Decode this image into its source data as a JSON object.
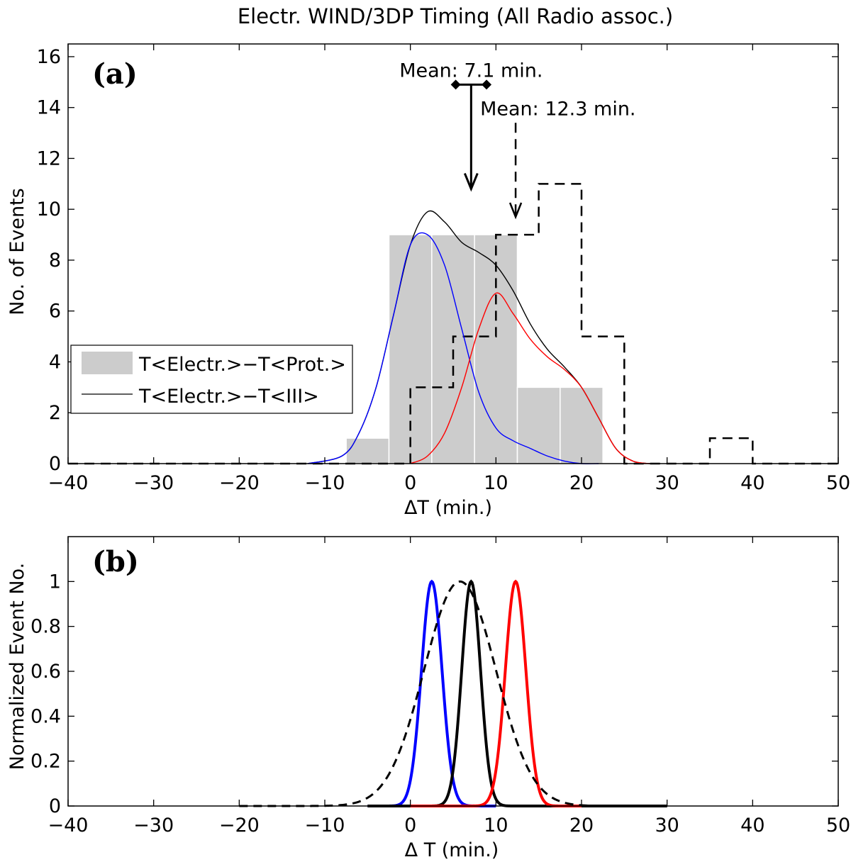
{
  "chart_data": [
    {
      "type": "bar",
      "panel_label": "(a)",
      "title": "Electr. WIND/3DP Timing (All Radio assoc.)",
      "xlabel": "ΔT (min.)",
      "ylabel": "No. of Events",
      "xlim": [
        -40,
        50
      ],
      "ylim": [
        0,
        16.5
      ],
      "xticks": [
        -40,
        -30,
        -20,
        -10,
        0,
        10,
        20,
        30,
        40,
        50
      ],
      "yticks": [
        0,
        2,
        4,
        6,
        8,
        10,
        12,
        14,
        16
      ],
      "grid": false,
      "legend": {
        "placement": "center-left",
        "entries": [
          "T<Electr.>−T<Prot.>",
          "T<Electr.>−T<III>"
        ]
      },
      "histogram_gray": {
        "name": "T<Electr.>−T<Prot.>",
        "color": "#cccccc",
        "bins": [
          {
            "x0": -7.5,
            "x1": -2.5,
            "value": 1
          },
          {
            "x0": -2.5,
            "x1": 2.5,
            "value": 9
          },
          {
            "x0": 2.5,
            "x1": 7.5,
            "value": 9
          },
          {
            "x0": 7.5,
            "x1": 12.5,
            "value": 9
          },
          {
            "x0": 12.5,
            "x1": 17.5,
            "value": 3
          },
          {
            "x0": 17.5,
            "x1": 22.5,
            "value": 3
          }
        ]
      },
      "histogram_dashed": {
        "edges": [
          -40,
          -35,
          -30,
          -25,
          -20,
          -15,
          -10,
          -5,
          0,
          5,
          10,
          15,
          20,
          25,
          30,
          35,
          40,
          45,
          50
        ],
        "values": [
          0,
          0,
          0,
          0,
          0,
          0,
          0,
          0,
          3,
          5,
          9,
          11,
          5,
          0,
          0,
          1,
          0,
          0
        ]
      },
      "curves": [
        {
          "name": "T<Electr.>−T<III>",
          "color": "#000000",
          "x": [
            -12,
            -8,
            -6,
            -4,
            -2,
            0,
            2,
            4,
            6,
            8,
            10,
            12,
            14,
            16,
            18,
            20,
            22,
            24,
            26,
            28
          ],
          "y": [
            0,
            0.3,
            1.2,
            3.0,
            5.8,
            8.6,
            9.9,
            9.5,
            8.7,
            8.3,
            7.8,
            6.8,
            5.5,
            4.5,
            3.8,
            3.0,
            1.8,
            0.6,
            0.1,
            0
          ]
        },
        {
          "name": "",
          "color": "#0000ff",
          "x": [
            -12,
            -8,
            -6,
            -4,
            -2,
            0,
            2,
            4,
            6,
            8,
            10,
            12,
            14,
            16,
            18,
            20,
            22
          ],
          "y": [
            0,
            0.3,
            1.2,
            3.0,
            5.8,
            8.6,
            9.0,
            7.8,
            5.3,
            2.8,
            1.4,
            0.9,
            0.6,
            0.3,
            0.1,
            0,
            0
          ]
        },
        {
          "name": "",
          "color": "#ff0000",
          "x": [
            0,
            2,
            4,
            6,
            8,
            10,
            12,
            14,
            16,
            18,
            20,
            22,
            24,
            26,
            28
          ],
          "y": [
            0,
            0.3,
            1.2,
            3.0,
            5.3,
            6.7,
            5.9,
            4.9,
            4.2,
            3.7,
            3.0,
            1.8,
            0.6,
            0.1,
            0
          ]
        }
      ],
      "annotations": [
        {
          "text": "Mean: 7.1 min.",
          "x": 7.1,
          "y": 15.2
        },
        {
          "text": "Mean: 12.3 min.",
          "x": 12.3,
          "y": 13.7
        }
      ],
      "mean_solid": {
        "value": 7.1,
        "error_bar": [
          5.3,
          8.9
        ],
        "arrow_from": 14.9,
        "arrow_to": 10.8
      },
      "mean_dashed": {
        "value": 12.3,
        "arrow_from": 13.4,
        "arrow_to": 9.7
      }
    },
    {
      "type": "line",
      "panel_label": "(b)",
      "xlabel": "Δ T (min.)",
      "ylabel": "Normalized Event No.",
      "xlim": [
        -40,
        50
      ],
      "ylim": [
        0,
        1.2
      ],
      "xticks": [
        -40,
        -30,
        -20,
        -10,
        0,
        10,
        20,
        30,
        40,
        50
      ],
      "yticks": [
        0,
        0.2,
        0.4,
        0.6,
        0.8,
        1
      ],
      "grid": false,
      "gaussians": [
        {
          "color": "#0000ff",
          "style": "solid",
          "mu": 2.5,
          "sigma": 1.2,
          "range": [
            -5,
            10
          ]
        },
        {
          "color": "#000000",
          "style": "solid",
          "mu": 7.1,
          "sigma": 1.1,
          "range": [
            -5,
            30
          ]
        },
        {
          "color": "#ff0000",
          "style": "solid",
          "mu": 12.3,
          "sigma": 1.2,
          "range": [
            0,
            20
          ]
        },
        {
          "color": "#000000",
          "style": "dashed",
          "mu": 5.8,
          "sigma": 4.2,
          "range": [
            -20,
            30
          ]
        }
      ]
    }
  ]
}
